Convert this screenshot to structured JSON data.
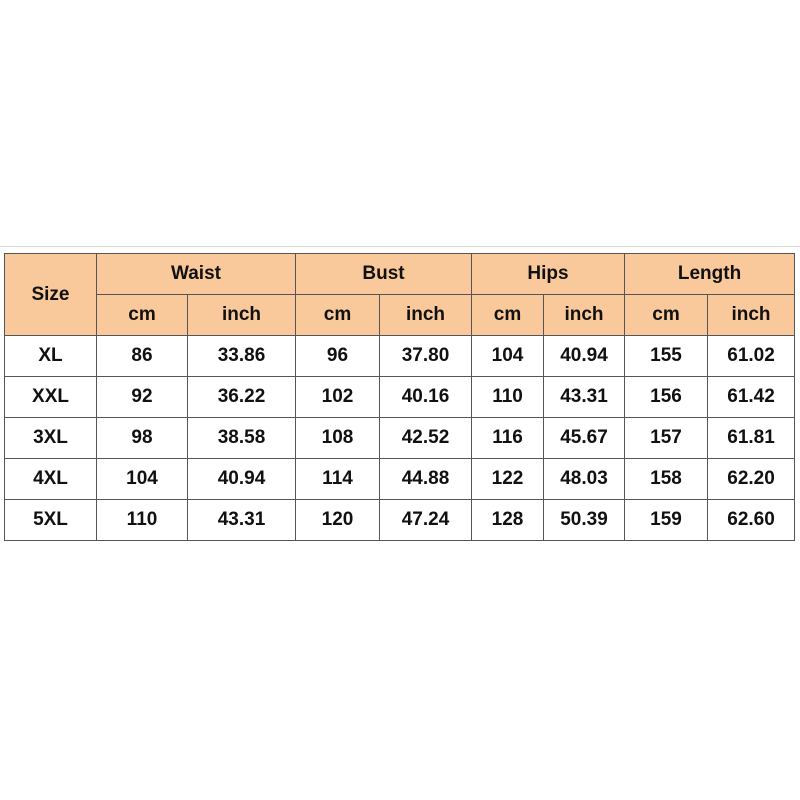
{
  "table": {
    "size_header": "Size",
    "groups": [
      {
        "label": "Waist",
        "units": [
          "cm",
          "inch"
        ]
      },
      {
        "label": "Bust",
        "units": [
          "cm",
          "inch"
        ]
      },
      {
        "label": "Hips",
        "units": [
          "cm",
          "inch"
        ]
      },
      {
        "label": "Length",
        "units": [
          "cm",
          "inch"
        ]
      }
    ],
    "rows": [
      {
        "size": "XL",
        "cells": [
          "86",
          "33.86",
          "96",
          "37.80",
          "104",
          "40.94",
          "155",
          "61.02"
        ]
      },
      {
        "size": "XXL",
        "cells": [
          "92",
          "36.22",
          "102",
          "40.16",
          "110",
          "43.31",
          "156",
          "61.42"
        ]
      },
      {
        "size": "3XL",
        "cells": [
          "98",
          "38.58",
          "108",
          "42.52",
          "116",
          "45.67",
          "157",
          "61.81"
        ]
      },
      {
        "size": "4XL",
        "cells": [
          "104",
          "40.94",
          "114",
          "44.88",
          "122",
          "48.03",
          "158",
          "62.20"
        ]
      },
      {
        "size": "5XL",
        "cells": [
          "110",
          "43.31",
          "120",
          "47.24",
          "128",
          "50.39",
          "159",
          "62.60"
        ]
      }
    ],
    "colors": {
      "header_bg": "#f9c99b",
      "border": "#555555",
      "text": "#111111"
    }
  }
}
